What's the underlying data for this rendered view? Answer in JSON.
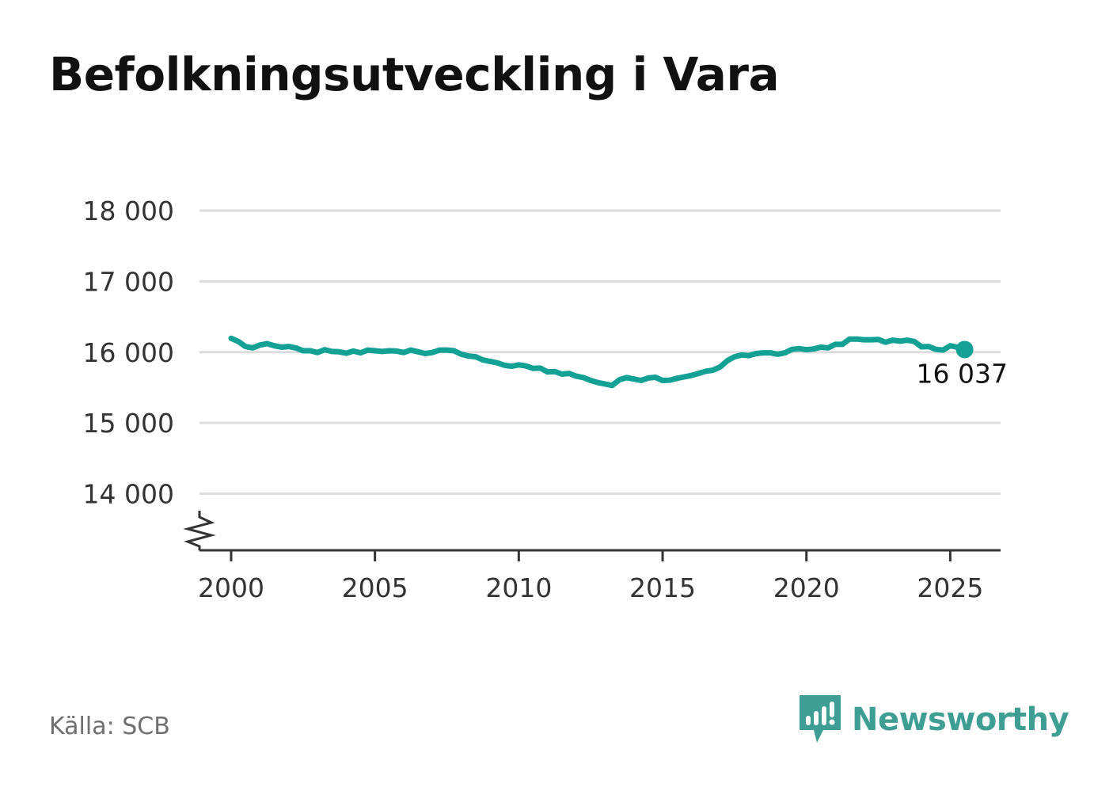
{
  "title": "Befolkningsutveckling i Vara",
  "source": "Källa: SCB",
  "brand": {
    "name": "Newsworthy",
    "icon": "newsworthy-logo-icon"
  },
  "colors": {
    "line": "#13a195",
    "grid": "#dddddd",
    "axis": "#333333",
    "brand": "#3f9e93"
  },
  "chart_data": {
    "type": "line",
    "title": "Befolkningsutveckling i Vara",
    "xlabel": "",
    "ylabel": "",
    "x_ticks": [
      2000,
      2005,
      2010,
      2015,
      2020,
      2025
    ],
    "x_tick_labels": [
      "2000",
      "2005",
      "2010",
      "2015",
      "2020",
      "2025"
    ],
    "y_ticks": [
      14000,
      15000,
      16000,
      17000,
      18000
    ],
    "y_tick_labels": [
      "14 000",
      "15 000",
      "16 000",
      "17 000",
      "18 000"
    ],
    "xlim": [
      1998.9,
      2026.75
    ],
    "ylim": [
      13200,
      18000
    ],
    "y_axis_break": true,
    "grid": true,
    "end_label": "16 037",
    "series": [
      {
        "values": [
          [
            2000.0,
            16195
          ],
          [
            2000.25,
            16150
          ],
          [
            2000.5,
            16080
          ],
          [
            2000.75,
            16060
          ],
          [
            2001.0,
            16100
          ],
          [
            2001.25,
            16120
          ],
          [
            2001.5,
            16090
          ],
          [
            2001.75,
            16070
          ],
          [
            2002.0,
            16080
          ],
          [
            2002.25,
            16060
          ],
          [
            2002.5,
            16020
          ],
          [
            2002.75,
            16020
          ],
          [
            2003.0,
            15995
          ],
          [
            2003.25,
            16035
          ],
          [
            2003.5,
            16010
          ],
          [
            2003.75,
            16005
          ],
          [
            2004.0,
            15985
          ],
          [
            2004.25,
            16015
          ],
          [
            2004.5,
            15990
          ],
          [
            2004.75,
            16030
          ],
          [
            2005.0,
            16020
          ],
          [
            2005.25,
            16010
          ],
          [
            2005.5,
            16020
          ],
          [
            2005.75,
            16015
          ],
          [
            2006.0,
            15995
          ],
          [
            2006.25,
            16030
          ],
          [
            2006.5,
            16005
          ],
          [
            2006.75,
            15980
          ],
          [
            2007.0,
            15995
          ],
          [
            2007.25,
            16030
          ],
          [
            2007.5,
            16030
          ],
          [
            2007.75,
            16020
          ],
          [
            2008.0,
            15970
          ],
          [
            2008.25,
            15945
          ],
          [
            2008.5,
            15935
          ],
          [
            2008.75,
            15890
          ],
          [
            2009.0,
            15870
          ],
          [
            2009.25,
            15850
          ],
          [
            2009.5,
            15815
          ],
          [
            2009.75,
            15800
          ],
          [
            2010.0,
            15820
          ],
          [
            2010.25,
            15805
          ],
          [
            2010.5,
            15770
          ],
          [
            2010.75,
            15775
          ],
          [
            2011.0,
            15720
          ],
          [
            2011.25,
            15725
          ],
          [
            2011.5,
            15690
          ],
          [
            2011.75,
            15700
          ],
          [
            2012.0,
            15660
          ],
          [
            2012.25,
            15640
          ],
          [
            2012.5,
            15600
          ],
          [
            2012.75,
            15570
          ],
          [
            2013.0,
            15550
          ],
          [
            2013.25,
            15530
          ],
          [
            2013.5,
            15610
          ],
          [
            2013.75,
            15640
          ],
          [
            2014.0,
            15620
          ],
          [
            2014.25,
            15600
          ],
          [
            2014.5,
            15635
          ],
          [
            2014.75,
            15645
          ],
          [
            2015.0,
            15600
          ],
          [
            2015.25,
            15605
          ],
          [
            2015.5,
            15630
          ],
          [
            2015.75,
            15650
          ],
          [
            2016.0,
            15670
          ],
          [
            2016.25,
            15700
          ],
          [
            2016.5,
            15730
          ],
          [
            2016.75,
            15745
          ],
          [
            2017.0,
            15790
          ],
          [
            2017.25,
            15880
          ],
          [
            2017.5,
            15935
          ],
          [
            2017.75,
            15960
          ],
          [
            2018.0,
            15950
          ],
          [
            2018.25,
            15980
          ],
          [
            2018.5,
            15990
          ],
          [
            2018.75,
            15990
          ],
          [
            2019.0,
            15970
          ],
          [
            2019.25,
            15990
          ],
          [
            2019.5,
            16040
          ],
          [
            2019.75,
            16050
          ],
          [
            2020.0,
            16035
          ],
          [
            2020.25,
            16045
          ],
          [
            2020.5,
            16070
          ],
          [
            2020.75,
            16060
          ],
          [
            2021.0,
            16110
          ],
          [
            2021.25,
            16110
          ],
          [
            2021.5,
            16185
          ],
          [
            2021.75,
            16185
          ],
          [
            2022.0,
            16175
          ],
          [
            2022.25,
            16175
          ],
          [
            2022.5,
            16180
          ],
          [
            2022.75,
            16140
          ],
          [
            2023.0,
            16170
          ],
          [
            2023.25,
            16155
          ],
          [
            2023.5,
            16170
          ],
          [
            2023.75,
            16150
          ],
          [
            2024.0,
            16075
          ],
          [
            2024.25,
            16080
          ],
          [
            2024.5,
            16040
          ],
          [
            2024.75,
            16030
          ],
          [
            2025.0,
            16090
          ],
          [
            2025.25,
            16070
          ],
          [
            2025.5,
            16037
          ]
        ]
      }
    ]
  }
}
